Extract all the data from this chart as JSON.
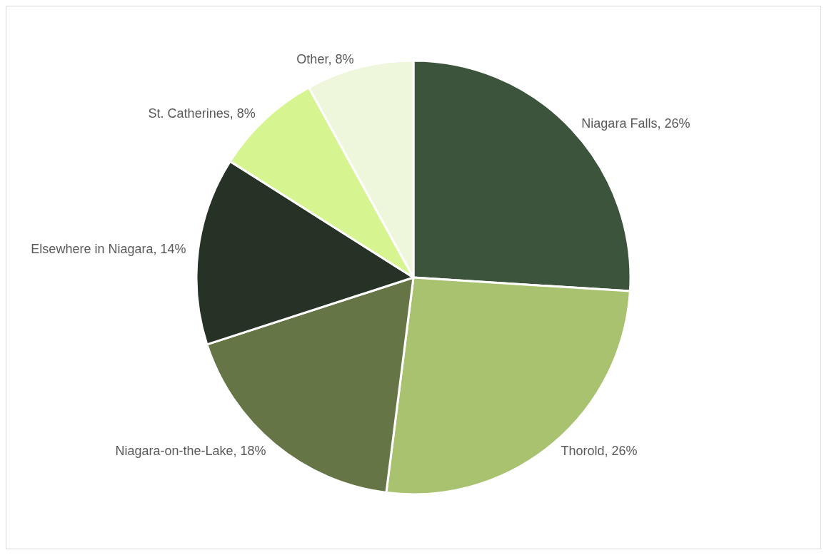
{
  "chart_data": {
    "type": "pie",
    "categories": [
      "Niagara Falls",
      "Thorold",
      "Niagara-on-the-Lake",
      "Elsewhere in Niagara",
      "St. Catherines",
      "Other"
    ],
    "values": [
      26,
      26,
      18,
      14,
      8,
      8
    ],
    "value_labels": [
      "26%",
      "26%",
      "18%",
      "14%",
      "8%",
      "8%"
    ],
    "colors": [
      "#3c543c",
      "#a9c270",
      "#657546",
      "#263226",
      "#d6f590",
      "#eef6dc"
    ],
    "legend": false
  }
}
